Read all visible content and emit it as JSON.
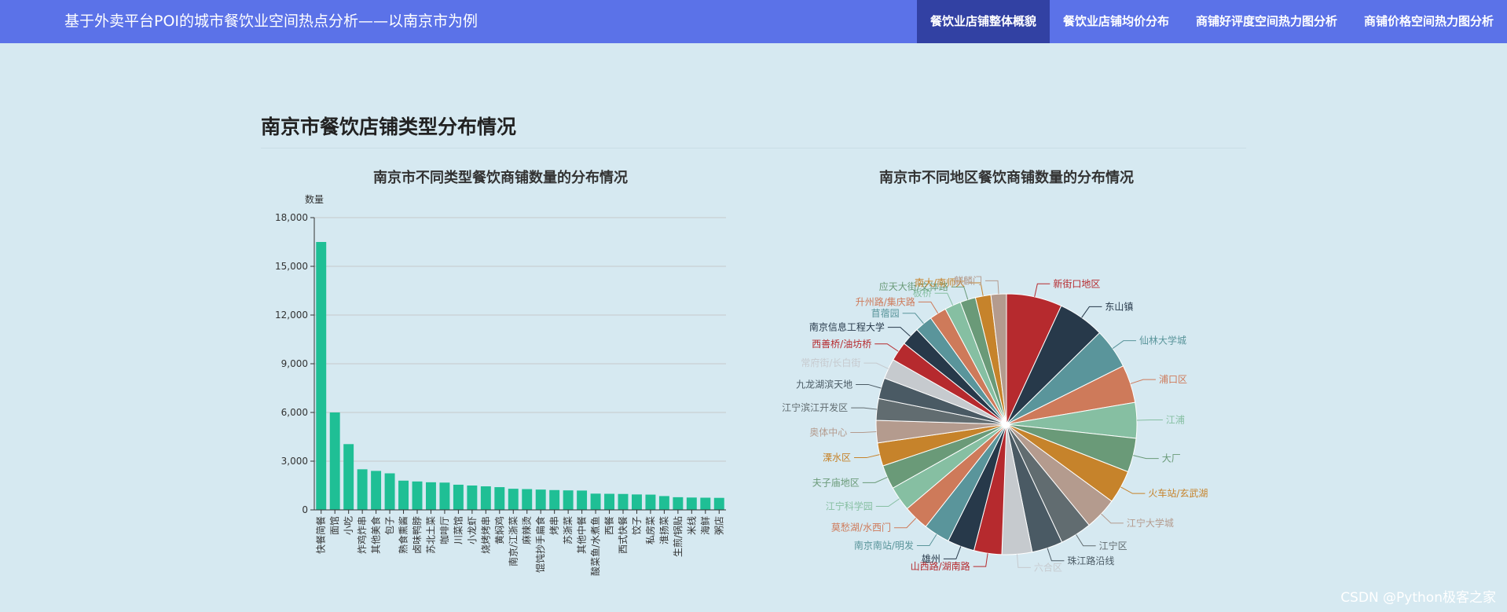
{
  "header": {
    "title": "基于外卖平台POI的城市餐饮业空间热点分析——以南京市为例",
    "nav": [
      {
        "label": "餐饮业店铺整体概貌",
        "active": true
      },
      {
        "label": "餐饮业店铺均价分布",
        "active": false
      },
      {
        "label": "商铺好评度空间热力图分析",
        "active": false
      },
      {
        "label": "商铺价格空间热力图分析",
        "active": false
      }
    ]
  },
  "section": {
    "title": "南京市餐饮店铺类型分布情况"
  },
  "watermark": "CSDN @Python极客之家",
  "chart_data": [
    {
      "type": "bar",
      "title": "南京市不同类型餐饮商铺数量的分布情况",
      "ylabel": "数量",
      "ylim": [
        0,
        18000
      ],
      "yticks": [
        0,
        3000,
        6000,
        9000,
        12000,
        15000,
        18000
      ],
      "ytick_labels": [
        "0",
        "3,000",
        "6,000",
        "9,000",
        "12,000",
        "15,000",
        "18,000"
      ],
      "grid": true,
      "color": "#1fbf95",
      "categories": [
        "快餐简餐",
        "面馆",
        "小吃",
        "炸鸡炸串",
        "其他美食",
        "包子",
        "熟食熏酱",
        "卤味鸭脖",
        "苏北土菜",
        "咖啡厅",
        "川菜馆",
        "小龙虾",
        "烧烤烤串",
        "黄焖鸡",
        "南京/江浙菜",
        "麻辣烫",
        "馄饨抄手扁食",
        "烤串",
        "苏浙菜",
        "其他中餐",
        "酸菜鱼/水煮鱼",
        "西餐",
        "西式快餐",
        "饺子",
        "私房菜",
        "淮扬菜",
        "生煎/锅贴",
        "米线",
        "海鲜",
        "粥店"
      ],
      "values": [
        16500,
        6000,
        4050,
        2500,
        2400,
        2250,
        1800,
        1750,
        1700,
        1680,
        1550,
        1500,
        1450,
        1400,
        1300,
        1280,
        1250,
        1220,
        1200,
        1190,
        1000,
        990,
        980,
        950,
        940,
        850,
        780,
        760,
        750,
        740
      ]
    },
    {
      "type": "pie",
      "title": "南京市不同地区餐饮商铺数量的分布情况",
      "slices": [
        {
          "label": "新街口地区",
          "value": 7.2,
          "color": "#b62a2e"
        },
        {
          "label": "东山镇",
          "value": 6.0,
          "color": "#27394a"
        },
        {
          "label": "仙林大学城",
          "value": 5.2,
          "color": "#5a959b"
        },
        {
          "label": "浦口区",
          "value": 4.9,
          "color": "#ce7a5a"
        },
        {
          "label": "江浦",
          "value": 4.6,
          "color": "#86bfa2"
        },
        {
          "label": "大厂",
          "value": 4.4,
          "color": "#6a9a78"
        },
        {
          "label": "火车站/玄武湖",
          "value": 4.3,
          "color": "#c6832b"
        },
        {
          "label": "江宁大学城",
          "value": 4.2,
          "color": "#b49b8e"
        },
        {
          "label": "江宁区",
          "value": 4.1,
          "color": "#616c70"
        },
        {
          "label": "珠江路沿线",
          "value": 4.0,
          "color": "#4a5a64"
        },
        {
          "label": "六合区",
          "value": 3.9,
          "color": "#c6cace"
        },
        {
          "label": "山西路/湖南路",
          "value": 3.6,
          "color": "#b62a2e"
        },
        {
          "label": "雄州",
          "value": 3.5,
          "color": "#27394a"
        },
        {
          "label": "南京南站/明发",
          "value": 3.4,
          "color": "#5a959b"
        },
        {
          "label": "莫愁湖/水西门",
          "value": 3.3,
          "color": "#ce7a5a"
        },
        {
          "label": "江宁科学园",
          "value": 3.2,
          "color": "#86bfa2"
        },
        {
          "label": "夫子庙地区",
          "value": 3.1,
          "color": "#6a9a78"
        },
        {
          "label": "溧水区",
          "value": 3.0,
          "color": "#c6832b"
        },
        {
          "label": "奥体中心",
          "value": 2.9,
          "color": "#b49b8e"
        },
        {
          "label": "江宁滨江开发区",
          "value": 2.8,
          "color": "#616c70"
        },
        {
          "label": "九龙湖滨天地",
          "value": 2.7,
          "color": "#4a5a64"
        },
        {
          "label": "常府街/长白街",
          "value": 2.6,
          "color": "#c6cace"
        },
        {
          "label": "西善桥/油坊桥",
          "value": 2.5,
          "color": "#b62a2e"
        },
        {
          "label": "南京信息工程大学",
          "value": 2.4,
          "color": "#27394a"
        },
        {
          "label": "苜蓿园",
          "value": 2.3,
          "color": "#5a959b"
        },
        {
          "label": "升州路/集庆路",
          "value": 2.2,
          "color": "#ce7a5a"
        },
        {
          "label": "板桥",
          "value": 2.1,
          "color": "#86bfa2"
        },
        {
          "label": "应天大街/文体路",
          "value": 2.0,
          "color": "#6a9a78"
        },
        {
          "label": "南大/南师大",
          "value": 2.0,
          "color": "#c6832b"
        },
        {
          "label": "麒麟门",
          "value": 2.0,
          "color": "#b49b8e"
        }
      ]
    }
  ]
}
